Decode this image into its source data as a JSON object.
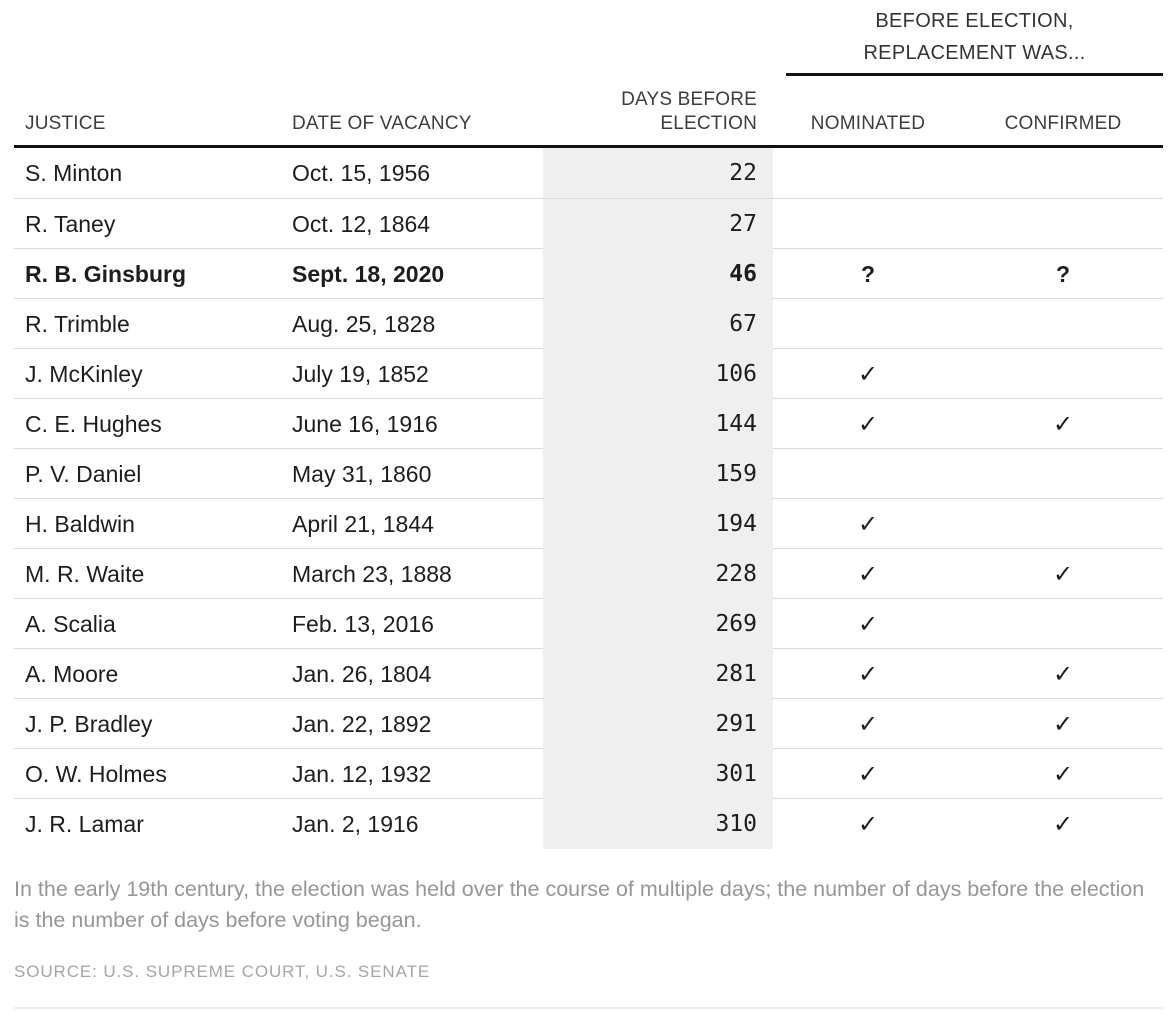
{
  "table": {
    "group_header": {
      "line1": "BEFORE ELECTION,",
      "line2": "REPLACEMENT WAS..."
    },
    "columns": {
      "justice": "JUSTICE",
      "date": "DATE OF VACANCY",
      "days_line1": "DAYS BEFORE",
      "days_line2": "ELECTION",
      "nominated": "NOMINATED",
      "confirmed": "CONFIRMED"
    },
    "rows": [
      {
        "justice": "S. Minton",
        "date": "Oct. 15, 1956",
        "days": "22",
        "nominated": "",
        "confirmed": "",
        "highlight": false
      },
      {
        "justice": "R. Taney",
        "date": "Oct. 12, 1864",
        "days": "27",
        "nominated": "",
        "confirmed": "",
        "highlight": false
      },
      {
        "justice": "R. B. Ginsburg",
        "date": "Sept. 18, 2020",
        "days": "46",
        "nominated": "?",
        "confirmed": "?",
        "highlight": true
      },
      {
        "justice": "R. Trimble",
        "date": "Aug. 25, 1828",
        "days": "67",
        "nominated": "",
        "confirmed": "",
        "highlight": false
      },
      {
        "justice": "J. McKinley",
        "date": "July 19, 1852",
        "days": "106",
        "nominated": "✓",
        "confirmed": "",
        "highlight": false
      },
      {
        "justice": "C. E. Hughes",
        "date": "June 16, 1916",
        "days": "144",
        "nominated": "✓",
        "confirmed": "✓",
        "highlight": false
      },
      {
        "justice": "P. V. Daniel",
        "date": "May 31, 1860",
        "days": "159",
        "nominated": "",
        "confirmed": "",
        "highlight": false
      },
      {
        "justice": "H. Baldwin",
        "date": "April 21, 1844",
        "days": "194",
        "nominated": "✓",
        "confirmed": "",
        "highlight": false
      },
      {
        "justice": "M. R. Waite",
        "date": "March 23, 1888",
        "days": "228",
        "nominated": "✓",
        "confirmed": "✓",
        "highlight": false
      },
      {
        "justice": "A. Scalia",
        "date": "Feb. 13, 2016",
        "days": "269",
        "nominated": "✓",
        "confirmed": "",
        "highlight": false
      },
      {
        "justice": "A. Moore",
        "date": "Jan. 26, 1804",
        "days": "281",
        "nominated": "✓",
        "confirmed": "✓",
        "highlight": false
      },
      {
        "justice": "J. P. Bradley",
        "date": "Jan. 22, 1892",
        "days": "291",
        "nominated": "✓",
        "confirmed": "✓",
        "highlight": false
      },
      {
        "justice": "O. W. Holmes",
        "date": "Jan. 12, 1932",
        "days": "301",
        "nominated": "✓",
        "confirmed": "✓",
        "highlight": false
      },
      {
        "justice": "J. R. Lamar",
        "date": "Jan. 2, 1916",
        "days": "310",
        "nominated": "✓",
        "confirmed": "✓",
        "highlight": false
      }
    ]
  },
  "footnote": "In the early 19th century, the election was held over the course of multiple days; the number of days before the election is the number of days before voting began.",
  "source": "SOURCE: U.S. SUPREME COURT, U.S. SENATE",
  "colors": {
    "rule_dark": "#121212",
    "row_separator": "#d9d9d9",
    "days_column_bg": "#efefef",
    "body_text": "#1d1d1d",
    "header_text": "#3d3d3d",
    "footnote_text": "#969696",
    "source_text": "#a5a5a5",
    "bottom_rule": "#ededed"
  },
  "chart_data": {
    "type": "table",
    "title": "BEFORE ELECTION, REPLACEMENT WAS...",
    "columns": [
      "JUSTICE",
      "DATE OF VACANCY",
      "DAYS BEFORE ELECTION",
      "NOMINATED",
      "CONFIRMED"
    ],
    "rows": [
      [
        "S. Minton",
        "Oct. 15, 1956",
        22,
        false,
        false
      ],
      [
        "R. Taney",
        "Oct. 12, 1864",
        27,
        false,
        false
      ],
      [
        "R. B. Ginsburg",
        "Sept. 18, 2020",
        46,
        null,
        null
      ],
      [
        "R. Trimble",
        "Aug. 25, 1828",
        67,
        false,
        false
      ],
      [
        "J. McKinley",
        "July 19, 1852",
        106,
        true,
        false
      ],
      [
        "C. E. Hughes",
        "June 16, 1916",
        144,
        true,
        true
      ],
      [
        "P. V. Daniel",
        "May 31, 1860",
        159,
        false,
        false
      ],
      [
        "H. Baldwin",
        "April 21, 1844",
        194,
        true,
        false
      ],
      [
        "M. R. Waite",
        "March 23, 1888",
        228,
        true,
        true
      ],
      [
        "A. Scalia",
        "Feb. 13, 2016",
        269,
        true,
        false
      ],
      [
        "A. Moore",
        "Jan. 26, 1804",
        281,
        true,
        true
      ],
      [
        "J. P. Bradley",
        "Jan. 22, 1892",
        291,
        true,
        true
      ],
      [
        "O. W. Holmes",
        "Jan. 12, 1932",
        301,
        true,
        true
      ],
      [
        "J. R. Lamar",
        "Jan. 2, 1916",
        310,
        true,
        true
      ]
    ],
    "notes": "Highlighted row: R. B. Ginsburg with unknown (?) nominated/confirmed status; checkmark = yes, blank = no"
  }
}
